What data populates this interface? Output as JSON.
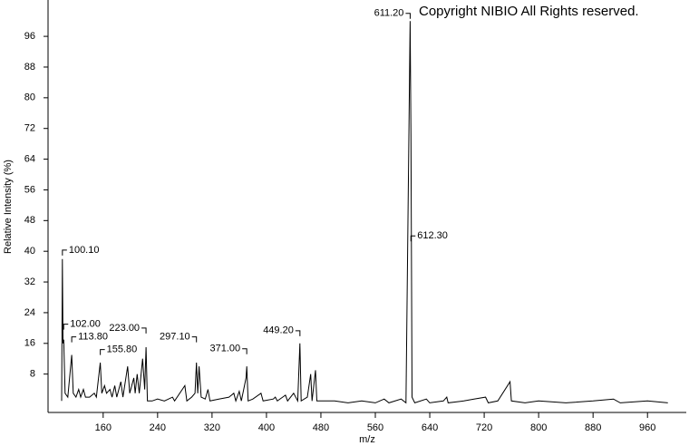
{
  "chart_data": {
    "type": "line",
    "xlabel": "m/z",
    "ylabel": "Relative Intensity (%)",
    "annotation": "Copyright NIBIO All Rights reserved.",
    "xlim": [
      79,
      1017
    ],
    "ylim": [
      -2,
      105
    ],
    "xticks": [
      160,
      240,
      320,
      400,
      480,
      560,
      640,
      720,
      800,
      880,
      960
    ],
    "yticks": [
      8,
      16,
      24,
      32,
      40,
      48,
      56,
      64,
      72,
      80,
      88,
      96
    ],
    "series": [
      {
        "color": "#000000",
        "x": [
          99,
          100.1,
          101,
          102,
          104,
          108,
          113.8,
          116,
          120,
          124,
          127,
          131,
          134,
          140,
          147,
          150,
          155.8,
          158,
          162,
          165,
          170,
          173,
          177,
          180,
          186,
          189,
          196,
          199,
          205,
          207,
          210,
          213,
          218,
          221,
          223,
          225,
          232,
          240,
          250,
          262,
          265,
          280,
          283,
          290,
          295,
          297.1,
          299,
          301,
          304,
          310,
          314,
          317,
          330,
          345,
          352,
          355,
          360,
          363,
          370,
          371,
          373,
          380,
          392,
          395,
          410,
          413,
          416,
          428,
          431,
          440,
          446,
          449.2,
          451,
          460,
          465,
          467,
          472,
          474,
          480,
          500,
          520,
          540,
          560,
          573,
          580,
          598,
          605,
          611.2,
          612.3,
          614,
          618,
          635,
          640,
          660,
          665,
          667,
          690,
          705,
          722,
          726,
          740,
          758,
          760,
          780,
          800,
          840,
          880,
          910,
          920,
          960,
          990
        ],
        "values": [
          1,
          38,
          16,
          17,
          3,
          2,
          13,
          3,
          2,
          4,
          2,
          4,
          2,
          2,
          3,
          2,
          11,
          3,
          5,
          3,
          4,
          2,
          5,
          2,
          6,
          2,
          10,
          3,
          7,
          3,
          8,
          3,
          12,
          4,
          15,
          1,
          1,
          1.5,
          1,
          2,
          1,
          5,
          1,
          2,
          3,
          11,
          3,
          10,
          2,
          1.5,
          4,
          1,
          1.5,
          2,
          3,
          1,
          3.5,
          1,
          7,
          10,
          1,
          1.5,
          3,
          1,
          1.5,
          2,
          1,
          2.5,
          1,
          3,
          1,
          16,
          1,
          2,
          8,
          1,
          9,
          1,
          1,
          1,
          0.5,
          1,
          0.5,
          1.5,
          0.5,
          1.5,
          0.5,
          100,
          70,
          2,
          0.5,
          1.5,
          0.5,
          1,
          2,
          0.5,
          1,
          1.5,
          2,
          0.5,
          1,
          6,
          1,
          0.5,
          1,
          0.5,
          1,
          1.5,
          0.5,
          1,
          0.5
        ]
      }
    ],
    "peak_labels": {
      "x": [
        100.1,
        102.0,
        113.8,
        155.8,
        223.0,
        297.1,
        371.0,
        449.2,
        611.2,
        612.3
      ],
      "value_labels": [
        "100.10",
        "102.00",
        "113.80",
        "155.80",
        "223.00",
        "297.10",
        "371.00",
        "449.20",
        "611.20",
        "612.30"
      ],
      "y": [
        40.3,
        21,
        17.7,
        14.4,
        20,
        17.7,
        14.6,
        19.3,
        102,
        44
      ]
    }
  }
}
